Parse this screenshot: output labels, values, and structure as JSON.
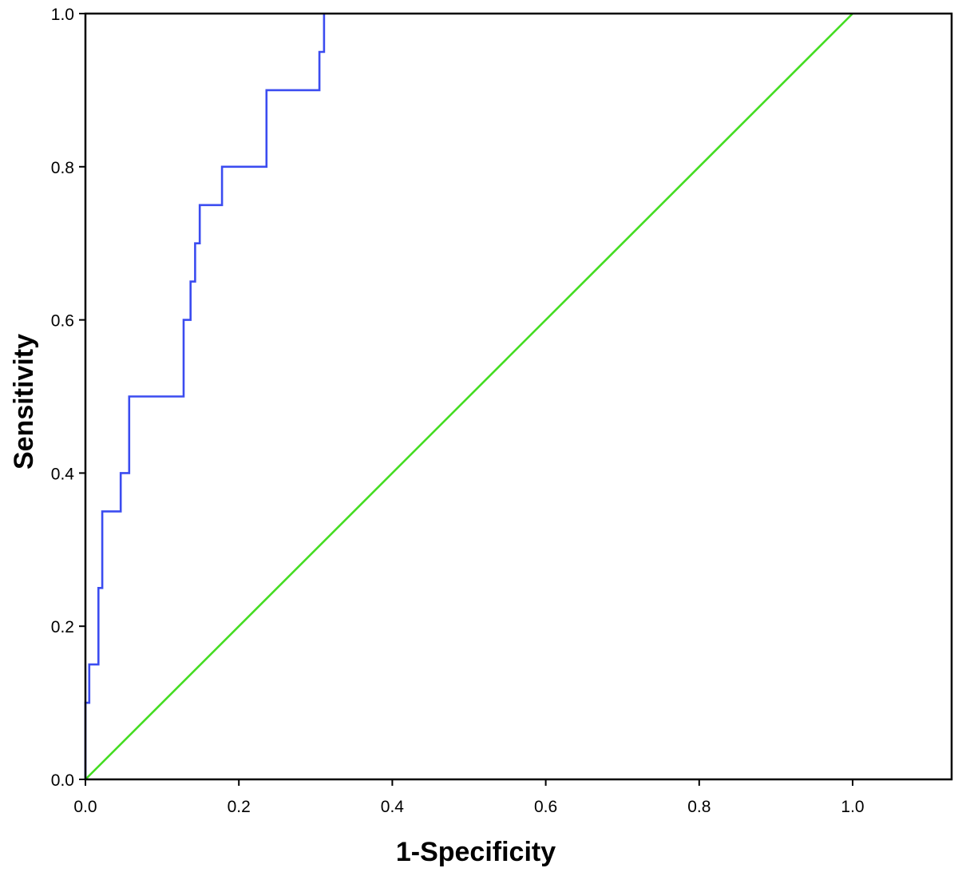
{
  "chart_data": {
    "type": "line",
    "title": "",
    "xlabel": "1-Specificity",
    "ylabel": "Sensitivity",
    "xlim": [
      0,
      1.13
    ],
    "ylim": [
      0,
      1.0
    ],
    "x_ticks": [
      0.0,
      0.2,
      0.4,
      0.6,
      0.8,
      1.0
    ],
    "y_ticks": [
      0.0,
      0.2,
      0.4,
      0.6,
      0.8,
      1.0
    ],
    "x_tick_labels": [
      "0.0",
      "0.2",
      "0.4",
      "0.6",
      "0.8",
      "1.0"
    ],
    "y_tick_labels": [
      "0.0",
      "0.2",
      "0.4",
      "0.6",
      "0.8",
      "1.0"
    ],
    "grid": false,
    "series": [
      {
        "color": "#3b4cf0",
        "step": true,
        "x": [
          0.0,
          0.0,
          0.005,
          0.005,
          0.017,
          0.017,
          0.022,
          0.022,
          0.046,
          0.046,
          0.057,
          0.057,
          0.128,
          0.128,
          0.137,
          0.137,
          0.143,
          0.143,
          0.149,
          0.149,
          0.178,
          0.178,
          0.236,
          0.236,
          0.305,
          0.305,
          0.311,
          0.311
        ],
        "y": [
          0.0,
          0.1,
          0.1,
          0.15,
          0.15,
          0.25,
          0.25,
          0.35,
          0.35,
          0.4,
          0.4,
          0.5,
          0.5,
          0.6,
          0.6,
          0.65,
          0.65,
          0.7,
          0.7,
          0.75,
          0.75,
          0.8,
          0.8,
          0.9,
          0.9,
          0.95,
          0.95,
          1.0
        ]
      },
      {
        "color": "#44dd22",
        "step": false,
        "x": [
          0.0,
          1.0
        ],
        "y": [
          0.0,
          1.0
        ]
      }
    ]
  }
}
